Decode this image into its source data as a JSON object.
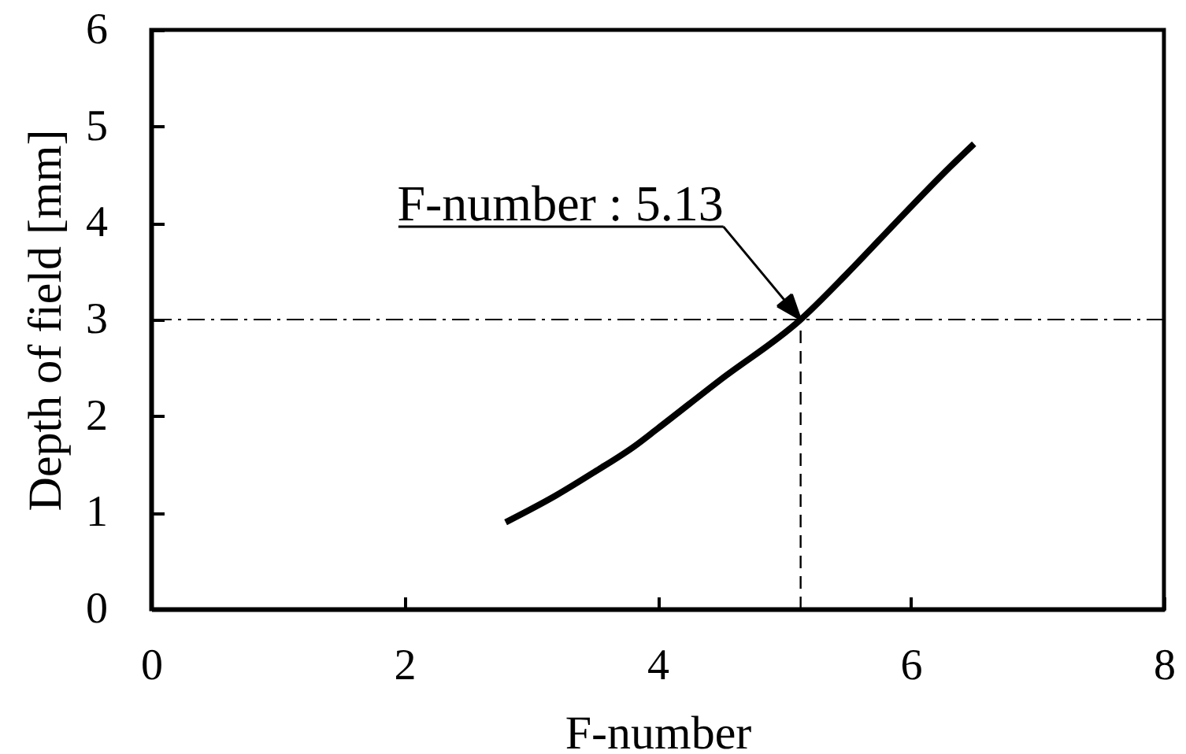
{
  "chart_data": {
    "type": "line",
    "xlabel": "F-number",
    "ylabel": "Depth of field [mm]",
    "x": [
      2.8,
      3.2,
      3.5,
      3.82,
      4.0,
      4.5,
      5.13,
      5.5,
      5.9,
      6.31,
      6.5
    ],
    "values": [
      0.9,
      1.18,
      1.42,
      1.69,
      1.87,
      2.38,
      3.0,
      3.48,
      4.03,
      4.58,
      4.82
    ],
    "color": "#000000",
    "xlim": [
      0,
      8
    ],
    "xticks": [
      0,
      2,
      4,
      6,
      8
    ],
    "ylim": [
      0,
      6
    ],
    "yticks": [
      0,
      1,
      2,
      3,
      4,
      5,
      6
    ],
    "ref_lines": [
      {
        "axis": "y",
        "value": 3,
        "color": "#000000",
        "line_style": "dashdot"
      },
      {
        "axis": "x",
        "value": 5.13,
        "color": "#000000",
        "line_style": "dashed"
      }
    ],
    "annotations": [
      {
        "text": "F-number : 5.13",
        "x": 5.13,
        "y": 3
      }
    ]
  }
}
